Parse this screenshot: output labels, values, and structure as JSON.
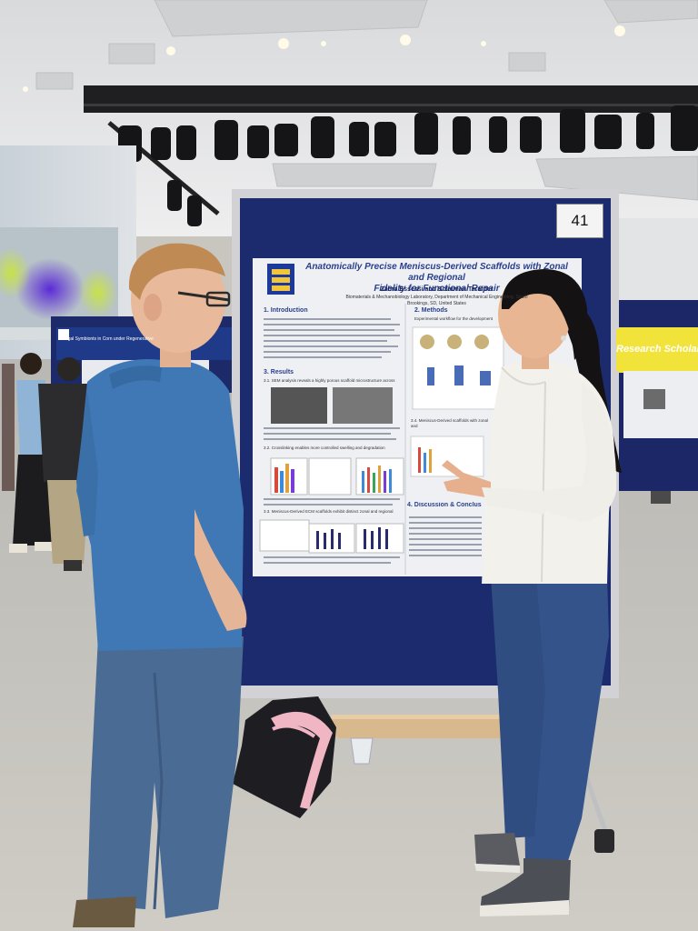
{
  "board_number": "41",
  "poster": {
    "title_line1": "Anatomically Precise Meniscus-Derived Scaffolds with Zonal and Regional",
    "title_line2": "Fidelity for Functional Repair",
    "authors": "Zahra Essessi and Solaiman Tarafder",
    "affiliation": "Biomaterials & Mechanobiology Laboratory, Department of Mechanical Engineering, South",
    "location": "Brookings, SD, United States",
    "sections": {
      "introduction": "1. Introduction",
      "methods": "2. Methods",
      "methods_sub": "Experimental workflow for the development",
      "results": "3. Results",
      "results_sub1": "3.1. SEM analysis reveals a highly porous scaffold microstructure across",
      "results_sub2": "3.2. Crosslinking enables more controlled swelling and degradation",
      "results_sub3": "3.3. Meniscus-Derived ECM scaffolds exhibit distinct zonal and regional",
      "results_sub4": "3.4. Meniscus-Derived scaffolds with zonal and",
      "discussion": "4. Discussion & Conclus"
    }
  },
  "background": {
    "banner_text": "Research Scholarship",
    "left_poster_title": "Fungal Symbionts in Corn under Regenerative"
  },
  "colors": {
    "board_blue": "#1c2a6e",
    "poster_bg": "#eef0f4",
    "poster_title": "#2a3f8c",
    "carpet": "#c9c6c0",
    "ceiling": "#e9e9ea",
    "shirt_blue": "#3f78b5",
    "jeans": "#3a5a86",
    "white_shirt": "#f3f1ec"
  }
}
